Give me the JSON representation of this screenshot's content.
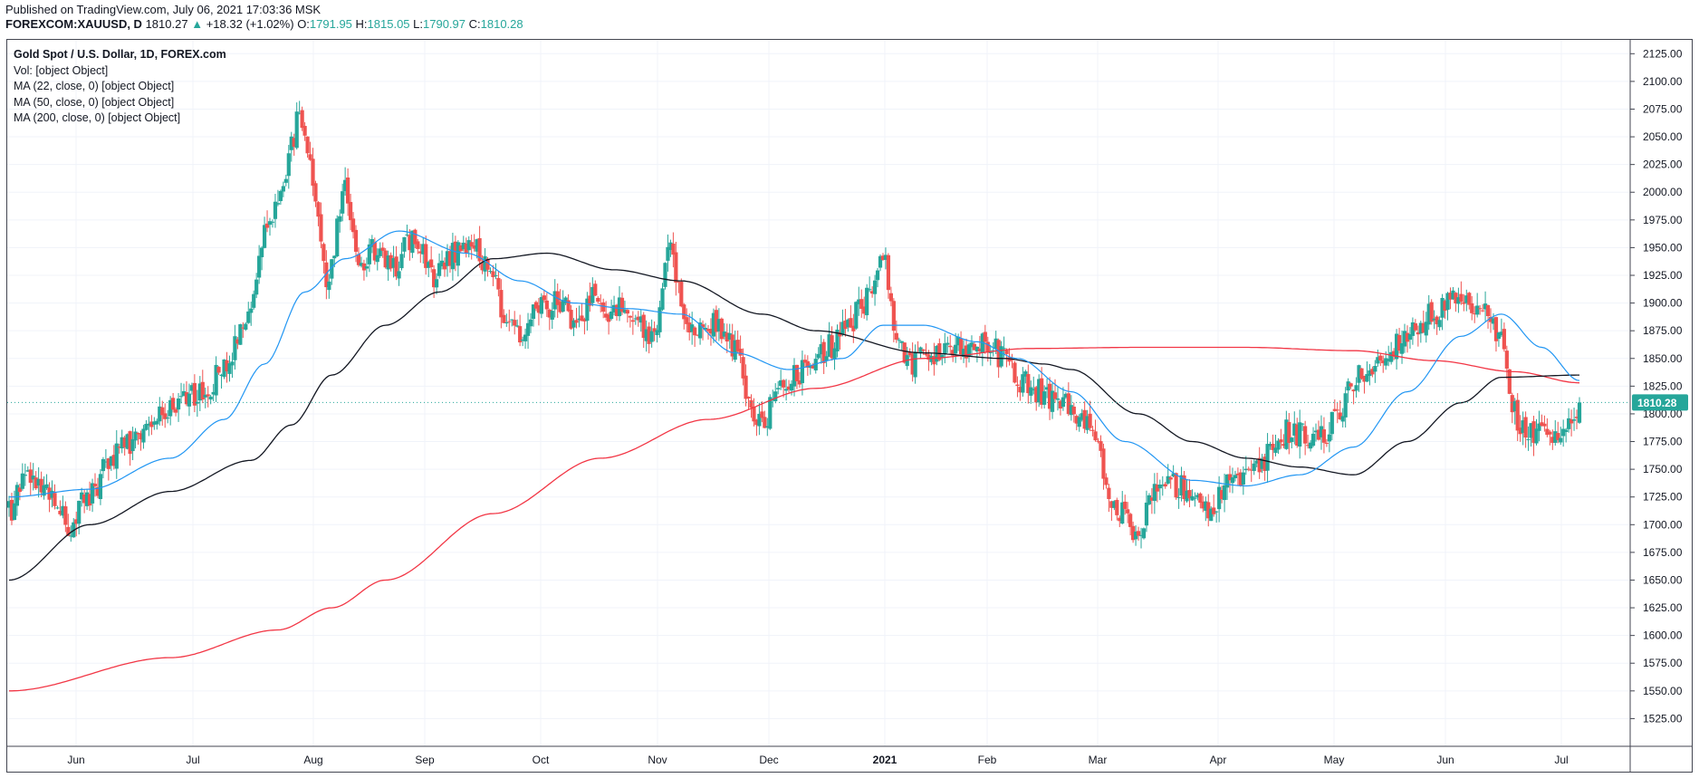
{
  "header": {
    "published": "Published on TradingView.com, July 06, 2021 17:03:36 MSK",
    "symbol": "FOREXCOM:XAUUSD, D",
    "last": "1810.27",
    "change_arrow": "▲",
    "change": "+18.32 (+1.02%)",
    "o_label": "O:",
    "o_value": "1791.95",
    "h_label": "H:",
    "h_value": "1815.05",
    "l_label": "L:",
    "l_value": "1790.97",
    "c_label": "C:",
    "c_value": "1810.28"
  },
  "legend": {
    "title": "Gold Spot / U.S. Dollar, 1D, FOREX.com",
    "vol": "Vol: [object Object]",
    "ma22": "MA (22, close, 0) [object Object]",
    "ma50": "MA (50, close, 0) [object Object]",
    "ma200": "MA (200, close, 0) [object Object]"
  },
  "colors": {
    "up": "#26a69a",
    "down": "#ef5350",
    "ma22": "#2196f3",
    "ma50": "#131722",
    "ma200": "#f23645",
    "grid": "#f0f3fa",
    "price_badge": "#26a69a"
  },
  "chart_data": {
    "type": "candlestick",
    "y_axis": {
      "ylim": [
        1500,
        2137.5
      ],
      "ticks": [
        "1525.00",
        "1550.00",
        "1575.00",
        "1600.00",
        "1625.00",
        "1650.00",
        "1675.00",
        "1700.00",
        "1725.00",
        "1750.00",
        "1775.00",
        "1800.00",
        "1825.00",
        "1850.00",
        "1875.00",
        "1900.00",
        "1925.00",
        "1950.00",
        "1975.00",
        "2000.00",
        "2025.00",
        "2050.00",
        "2075.00",
        "2100.00",
        "2125.00"
      ]
    },
    "x_axis": {
      "labels": [
        "Jun",
        "Jul",
        "Aug",
        "Sep",
        "Oct",
        "Nov",
        "Dec",
        "2021",
        "Feb",
        "Mar",
        "Apr",
        "May",
        "Jun",
        "Jul"
      ],
      "bold": [
        "2021"
      ]
    },
    "current_price": "1810.28",
    "close_anchors": [
      [
        0,
        1712
      ],
      [
        6,
        1740
      ],
      [
        15,
        1730
      ],
      [
        22,
        1700
      ],
      [
        30,
        1726
      ],
      [
        38,
        1760
      ],
      [
        45,
        1775
      ],
      [
        55,
        1800
      ],
      [
        62,
        1810
      ],
      [
        70,
        1815
      ],
      [
        80,
        1840
      ],
      [
        88,
        1880
      ],
      [
        95,
        1960
      ],
      [
        100,
        1985
      ],
      [
        105,
        2040
      ],
      [
        108,
        2070
      ],
      [
        112,
        2020
      ],
      [
        118,
        1920
      ],
      [
        125,
        2000
      ],
      [
        130,
        1930
      ],
      [
        137,
        1950
      ],
      [
        143,
        1930
      ],
      [
        150,
        1960
      ],
      [
        158,
        1925
      ],
      [
        165,
        1945
      ],
      [
        172,
        1950
      ],
      [
        180,
        1930
      ],
      [
        185,
        1880
      ],
      [
        190,
        1870
      ],
      [
        197,
        1895
      ],
      [
        205,
        1900
      ],
      [
        210,
        1880
      ],
      [
        218,
        1910
      ],
      [
        222,
        1890
      ],
      [
        230,
        1895
      ],
      [
        235,
        1880
      ],
      [
        240,
        1870
      ],
      [
        246,
        1950
      ],
      [
        252,
        1870
      ],
      [
        258,
        1885
      ],
      [
        264,
        1880
      ],
      [
        270,
        1860
      ],
      [
        275,
        1810
      ],
      [
        280,
        1790
      ],
      [
        286,
        1820
      ],
      [
        292,
        1835
      ],
      [
        298,
        1845
      ],
      [
        305,
        1860
      ],
      [
        312,
        1880
      ],
      [
        318,
        1900
      ],
      [
        325,
        1945
      ],
      [
        330,
        1870
      ],
      [
        335,
        1845
      ],
      [
        340,
        1860
      ],
      [
        345,
        1850
      ],
      [
        352,
        1865
      ],
      [
        358,
        1855
      ],
      [
        364,
        1865
      ],
      [
        370,
        1850
      ],
      [
        376,
        1830
      ],
      [
        382,
        1820
      ],
      [
        388,
        1815
      ],
      [
        394,
        1810
      ],
      [
        400,
        1790
      ],
      [
        405,
        1770
      ],
      [
        410,
        1720
      ],
      [
        415,
        1710
      ],
      [
        420,
        1690
      ],
      [
        425,
        1725
      ],
      [
        430,
        1740
      ],
      [
        436,
        1735
      ],
      [
        442,
        1730
      ],
      [
        446,
        1710
      ],
      [
        452,
        1735
      ],
      [
        458,
        1740
      ],
      [
        465,
        1750
      ],
      [
        470,
        1770
      ],
      [
        476,
        1785
      ],
      [
        482,
        1780
      ],
      [
        488,
        1780
      ],
      [
        494,
        1795
      ],
      [
        500,
        1830
      ],
      [
        506,
        1840
      ],
      [
        512,
        1850
      ],
      [
        518,
        1870
      ],
      [
        524,
        1880
      ],
      [
        530,
        1890
      ],
      [
        536,
        1900
      ],
      [
        542,
        1895
      ],
      [
        548,
        1890
      ],
      [
        554,
        1870
      ],
      [
        560,
        1800
      ],
      [
        564,
        1780
      ],
      [
        570,
        1790
      ],
      [
        576,
        1775
      ],
      [
        580,
        1790
      ],
      [
        584,
        1810
      ]
    ],
    "ma200_anchors": [
      [
        0,
        1550
      ],
      [
        60,
        1580
      ],
      [
        100,
        1605
      ],
      [
        120,
        1625
      ],
      [
        140,
        1650
      ],
      [
        180,
        1710
      ],
      [
        220,
        1760
      ],
      [
        260,
        1795
      ],
      [
        300,
        1823
      ],
      [
        340,
        1850
      ],
      [
        380,
        1859
      ],
      [
        420,
        1860
      ],
      [
        460,
        1860
      ],
      [
        500,
        1857
      ],
      [
        530,
        1848
      ],
      [
        560,
        1838
      ],
      [
        584,
        1828
      ]
    ],
    "ma50_anchors": [
      [
        0,
        1650
      ],
      [
        30,
        1700
      ],
      [
        60,
        1730
      ],
      [
        90,
        1758
      ],
      [
        105,
        1790
      ],
      [
        120,
        1835
      ],
      [
        140,
        1880
      ],
      [
        160,
        1910
      ],
      [
        180,
        1940
      ],
      [
        200,
        1945
      ],
      [
        225,
        1930
      ],
      [
        250,
        1920
      ],
      [
        280,
        1890
      ],
      [
        300,
        1875
      ],
      [
        340,
        1855
      ],
      [
        370,
        1850
      ],
      [
        385,
        1845
      ],
      [
        395,
        1840
      ],
      [
        420,
        1800
      ],
      [
        440,
        1775
      ],
      [
        460,
        1760
      ],
      [
        480,
        1752
      ],
      [
        500,
        1745
      ],
      [
        520,
        1775
      ],
      [
        540,
        1810
      ],
      [
        555,
        1833
      ],
      [
        584,
        1835
      ]
    ],
    "ma22_anchors": [
      [
        0,
        1725
      ],
      [
        30,
        1732
      ],
      [
        60,
        1760
      ],
      [
        80,
        1795
      ],
      [
        95,
        1845
      ],
      [
        110,
        1910
      ],
      [
        125,
        1940
      ],
      [
        145,
        1965
      ],
      [
        170,
        1945
      ],
      [
        190,
        1920
      ],
      [
        210,
        1900
      ],
      [
        230,
        1895
      ],
      [
        250,
        1890
      ],
      [
        270,
        1855
      ],
      [
        290,
        1840
      ],
      [
        310,
        1850
      ],
      [
        325,
        1880
      ],
      [
        340,
        1880
      ],
      [
        360,
        1865
      ],
      [
        375,
        1850
      ],
      [
        395,
        1820
      ],
      [
        415,
        1775
      ],
      [
        440,
        1740
      ],
      [
        460,
        1735
      ],
      [
        480,
        1745
      ],
      [
        500,
        1770
      ],
      [
        520,
        1820
      ],
      [
        540,
        1870
      ],
      [
        555,
        1890
      ],
      [
        570,
        1860
      ],
      [
        584,
        1830
      ]
    ]
  }
}
